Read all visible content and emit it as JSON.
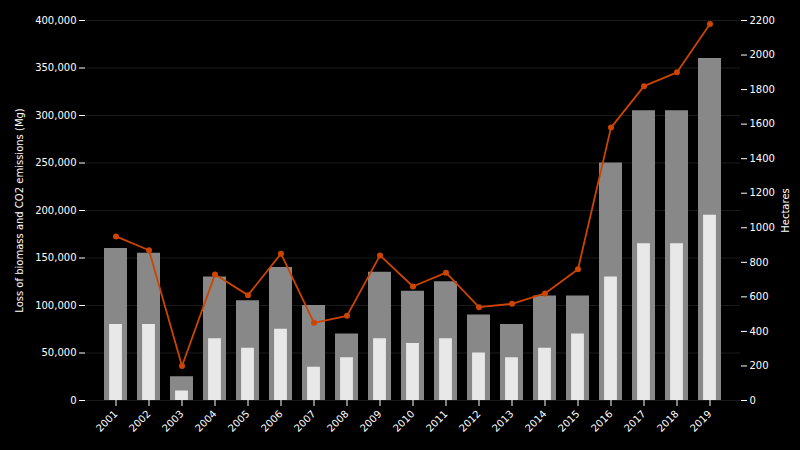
{
  "chart_data": {
    "type": "bar",
    "categories": [
      "2001",
      "2002",
      "2003",
      "2004",
      "2005",
      "2006",
      "2007",
      "2008",
      "2009",
      "2010",
      "2011",
      "2012",
      "2013",
      "2014",
      "2015",
      "2016",
      "2017",
      "2018",
      "2019"
    ],
    "series": [
      {
        "type": "bar",
        "color": "#888888",
        "values": [
          160000,
          155000,
          25000,
          130000,
          105000,
          140000,
          100000,
          70000,
          135000,
          115000,
          125000,
          90000,
          80000,
          110000,
          110000,
          250000,
          305000,
          305000,
          360000
        ]
      },
      {
        "type": "bar",
        "color": "#e8e8e8",
        "values": [
          80000,
          80000,
          10000,
          65000,
          55000,
          75000,
          35000,
          45000,
          65000,
          60000,
          65000,
          50000,
          45000,
          55000,
          70000,
          130000,
          165000,
          165000,
          195000
        ]
      },
      {
        "type": "line",
        "color": "#cc4400",
        "marker": "circle",
        "axis": "y2",
        "values": [
          950,
          870,
          200,
          730,
          610,
          850,
          450,
          490,
          840,
          660,
          740,
          540,
          560,
          620,
          760,
          1580,
          1820,
          1900,
          2180
        ]
      }
    ],
    "ylim": [
      0,
      400000
    ],
    "yticks": [
      0,
      {
        "value": 50000,
        "label": "50,000"
      },
      {
        "value": 100000,
        "label": "100,000"
      },
      {
        "value": 150000,
        "label": "150,000"
      },
      {
        "value": 200000,
        "label": "200,000"
      },
      {
        "value": 250000,
        "label": "250,000"
      },
      {
        "value": 300000,
        "label": "300,000"
      },
      {
        "value": 350000,
        "label": "350,000"
      },
      {
        "value": 400000,
        "label": "400,000"
      }
    ],
    "y2lim": [
      0,
      2200
    ],
    "y2ticks": [
      0,
      200,
      400,
      600,
      800,
      1000,
      1200,
      1400,
      1600,
      1800,
      2000,
      2200
    ],
    "ylabel": "Loss of biomass and CO2 emissions (Mg)",
    "y2label": "Hectares",
    "grid": true
  }
}
